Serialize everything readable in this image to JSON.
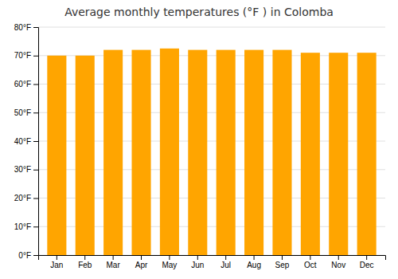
{
  "chart_data": {
    "type": "bar",
    "title": "Average monthly temperatures (°F ) in Colomba",
    "categories": [
      "Jan",
      "Feb",
      "Mar",
      "Apr",
      "May",
      "Jun",
      "Jul",
      "Aug",
      "Sep",
      "Oct",
      "Nov",
      "Dec"
    ],
    "values": [
      70,
      70,
      72,
      72,
      72.5,
      72,
      72,
      72,
      72,
      71,
      71,
      71
    ],
    "color": "#FFA500",
    "ylim": [
      0,
      80
    ],
    "yticks": [
      {
        "value": 0,
        "label": "0°F"
      },
      {
        "value": 10,
        "label": "10°F"
      },
      {
        "value": 20,
        "label": "20°F"
      },
      {
        "value": 30,
        "label": "30°F"
      },
      {
        "value": 40,
        "label": "40°F"
      },
      {
        "value": 50,
        "label": "50°F"
      },
      {
        "value": 60,
        "label": "60°F"
      },
      {
        "value": 70,
        "label": "70°F"
      },
      {
        "value": 80,
        "label": "80°F"
      }
    ],
    "grid": true
  }
}
